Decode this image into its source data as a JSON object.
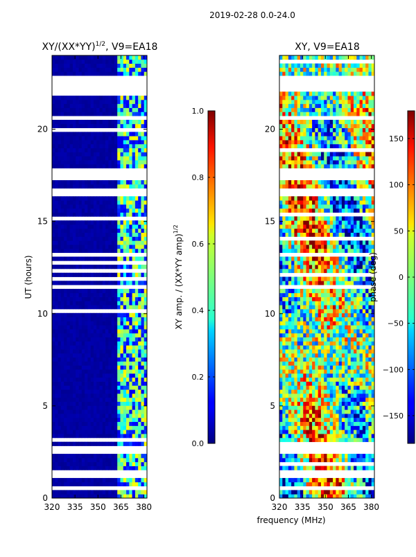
{
  "chart_data": [
    {
      "type": "heatmap",
      "suptitle": "2019-02-28 0.0-24.0",
      "title": "XY/(XX*YY)^1/2, V9=EA18",
      "title_main": "XY/(XX*YY)",
      "title_exp": "1/2",
      "title_tail": ", V9=EA18",
      "xlabel": "",
      "ylabel": "UT (hours)",
      "xlim": [
        320,
        382
      ],
      "ylim": [
        0,
        24
      ],
      "xticks": [
        320,
        335,
        350,
        365,
        380
      ],
      "yticks": [
        0,
        5,
        10,
        15,
        20
      ],
      "colorbar": {
        "label": "XY amp. / (XX*YY amp)^1/2",
        "label_main": "XY amp. / (XX*YY amp)",
        "label_exp": "1/2",
        "range": [
          0.0,
          1.0
        ],
        "ticks": [
          "0.0",
          "0.2",
          "0.4",
          "0.6",
          "0.8",
          "1.0"
        ],
        "tick_values": [
          0.0,
          0.2,
          0.4,
          0.6,
          0.8,
          1.0
        ],
        "colormap": "jet"
      },
      "flagged_hours": [
        [
          22.0,
          23.0
        ],
        [
          20.6,
          20.8
        ],
        [
          17.3,
          17.8
        ],
        [
          16.4,
          16.7
        ],
        [
          13.1,
          13.4
        ],
        [
          11.4,
          11.6
        ],
        [
          2.5,
          2.8
        ],
        [
          1.2,
          1.5
        ],
        [
          0.4,
          0.6
        ]
      ],
      "low_amplitude_band_mhz": [
        320,
        363
      ],
      "structured_band_mhz": [
        363,
        382
      ]
    },
    {
      "type": "heatmap",
      "title": "XY, V9=EA18",
      "xlabel": "frequency (MHz)",
      "ylabel": "",
      "xlim": [
        320,
        382
      ],
      "ylim": [
        0,
        24
      ],
      "xticks": [
        320,
        335,
        350,
        365,
        380
      ],
      "yticks": [
        0,
        5,
        10,
        15,
        20
      ],
      "colorbar": {
        "label": "phase (deg)",
        "range": [
          -180,
          180
        ],
        "ticks": [
          "−150",
          "−100",
          "−50",
          "0",
          "50",
          "100",
          "150"
        ],
        "tick_values": [
          -150,
          -100,
          -50,
          0,
          50,
          100,
          150
        ],
        "colormap": "jet"
      },
      "flagged_hours": [
        [
          22.0,
          23.0
        ],
        [
          20.6,
          20.8
        ],
        [
          17.3,
          17.8
        ],
        [
          16.4,
          16.7
        ],
        [
          13.1,
          13.4
        ],
        [
          11.4,
          11.6
        ],
        [
          2.5,
          2.8
        ],
        [
          1.2,
          1.5
        ],
        [
          0.4,
          0.6
        ]
      ]
    }
  ]
}
